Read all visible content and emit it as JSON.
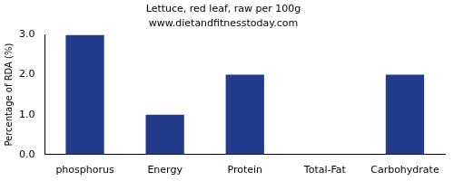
{
  "chart_data": {
    "type": "bar",
    "title": "Lettuce, red leaf, raw per 100g",
    "subtitle": "www.dietandfitnesstoday.com",
    "y_label": "Percentage of RDA (%)",
    "categories": [
      "phosphorus",
      "Energy",
      "Protein",
      "Total-Fat",
      "Carbohydrate"
    ],
    "values": [
      3,
      1,
      2,
      0,
      2
    ],
    "color": "#233b8b",
    "ylim": [
      0,
      3
    ],
    "yticks": [
      {
        "value": 0,
        "label": "0.0"
      },
      {
        "value": 1,
        "label": "1.0"
      },
      {
        "value": 2,
        "label": "2.0"
      },
      {
        "value": 3,
        "label": "3.0"
      }
    ],
    "grid": false
  }
}
